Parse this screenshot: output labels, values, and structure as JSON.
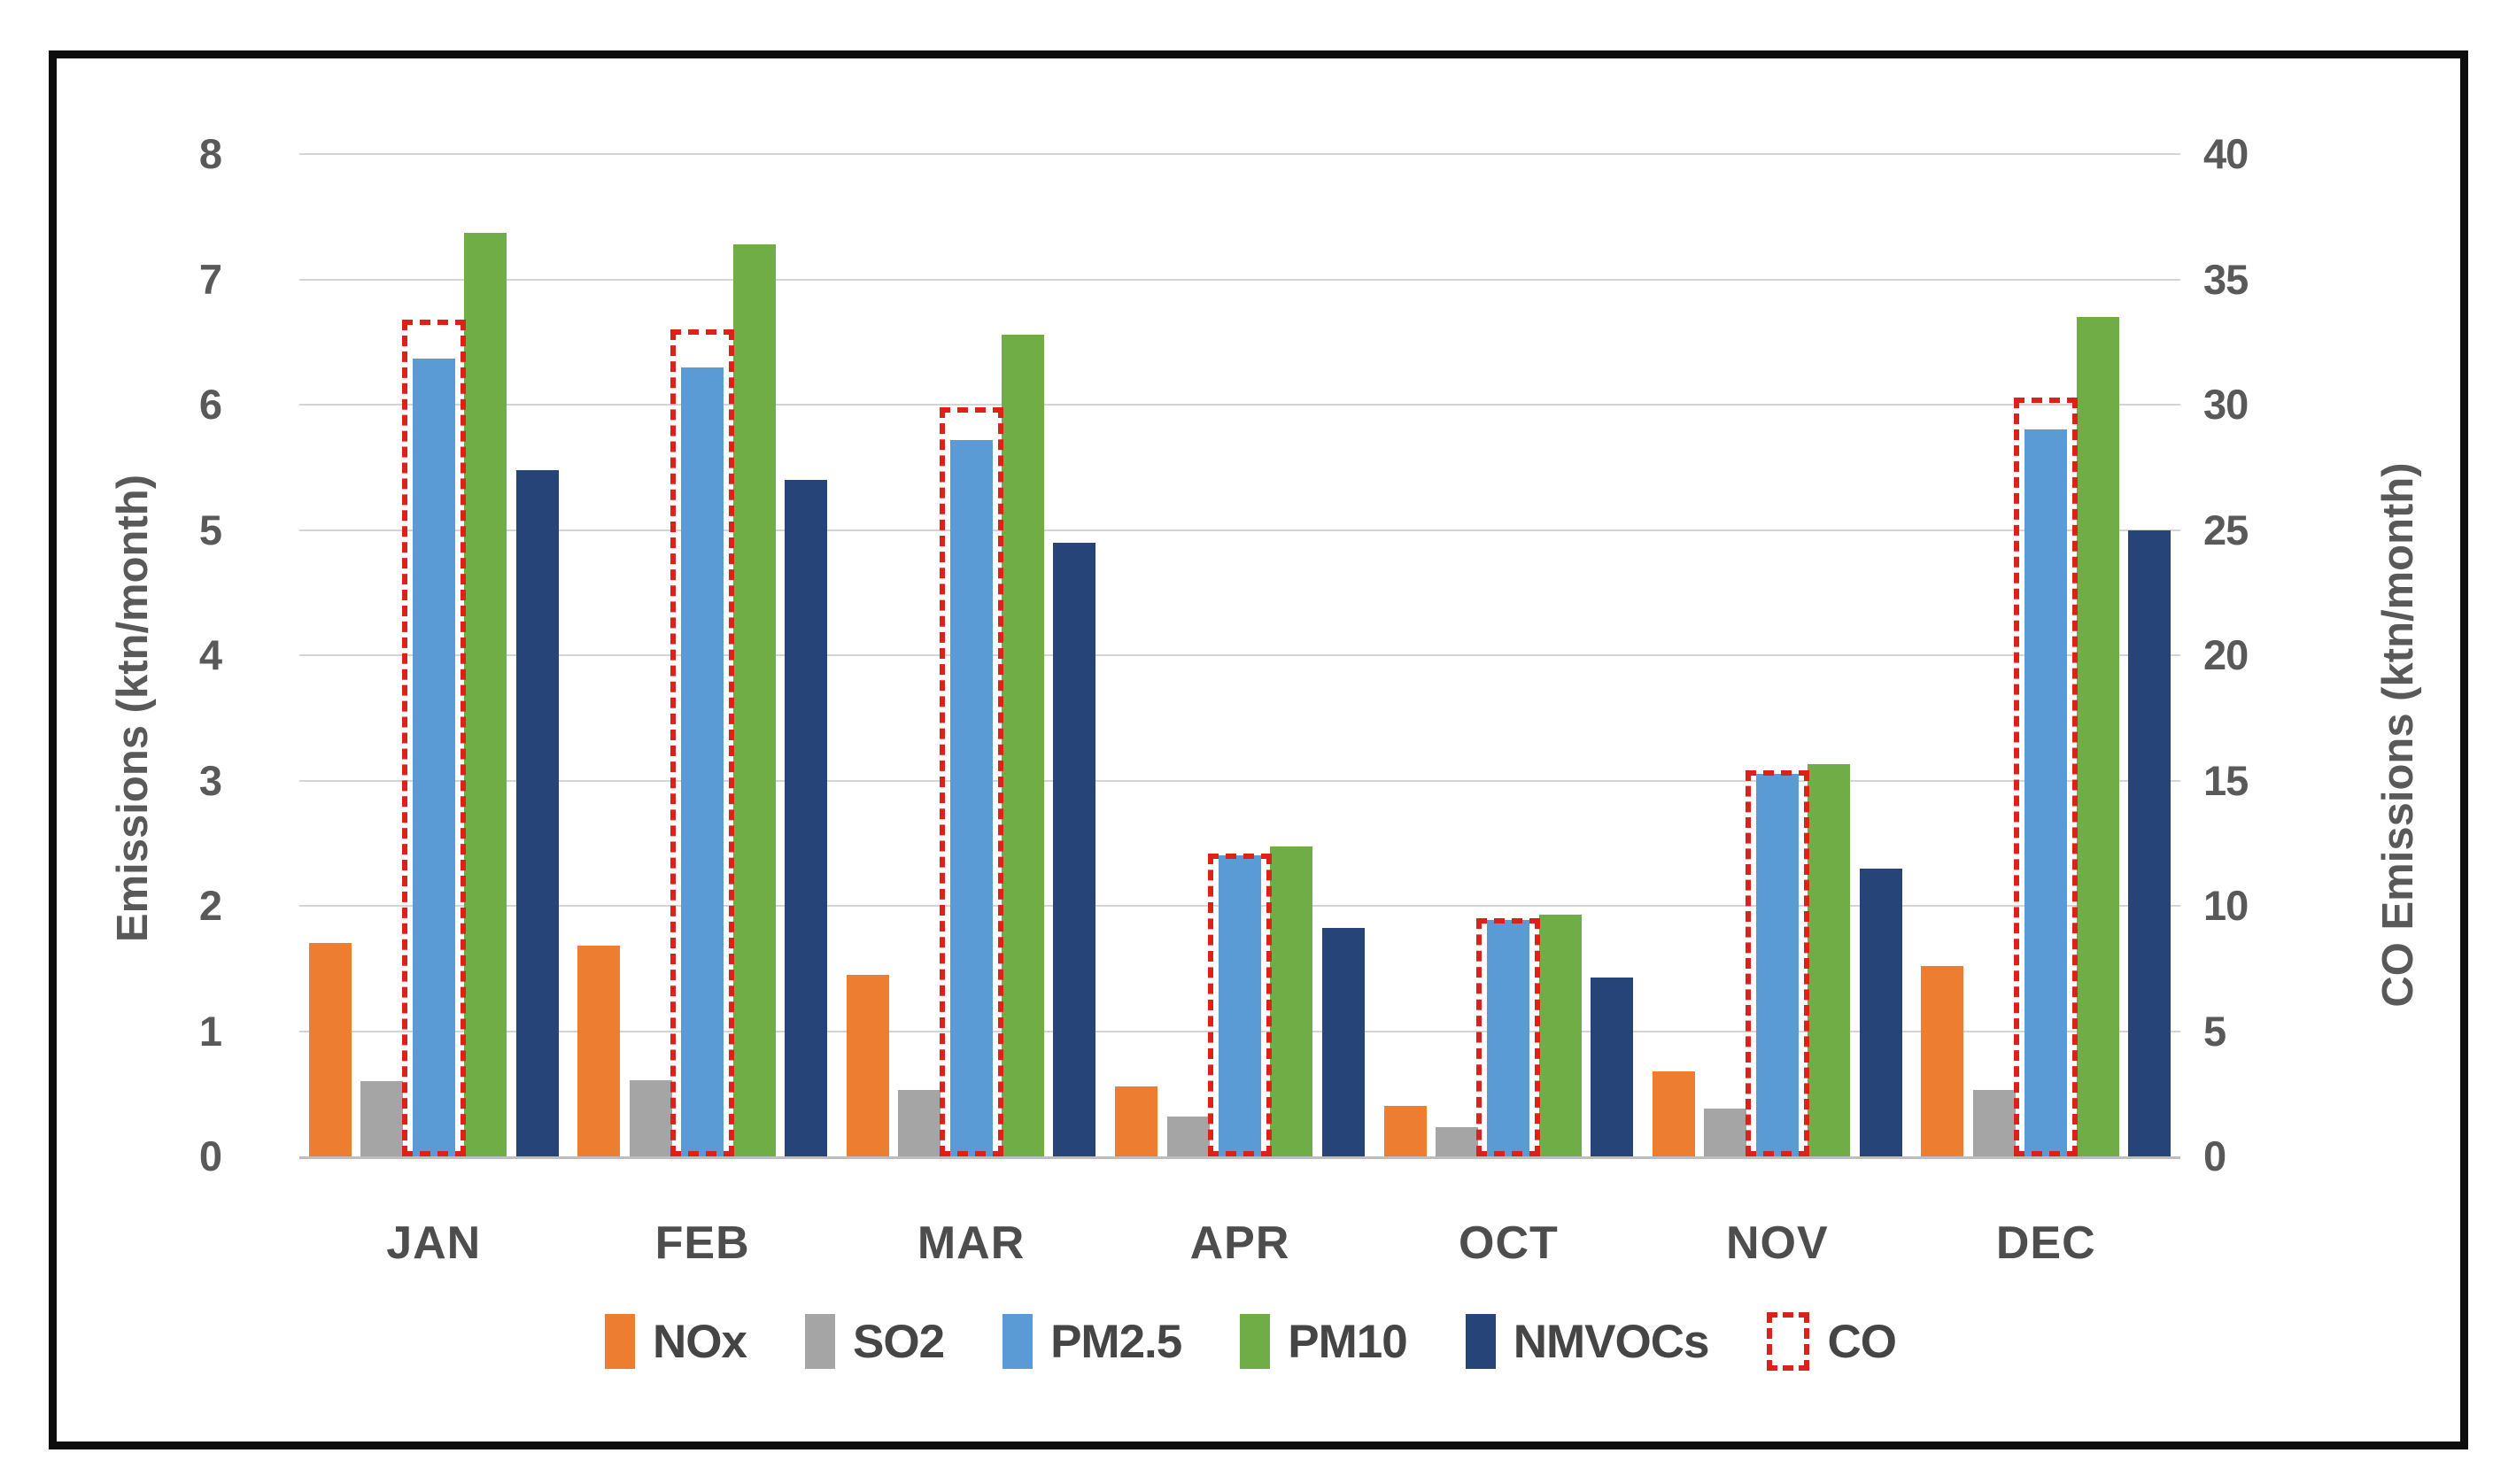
{
  "chart_data": {
    "type": "bar",
    "title": "",
    "categories": [
      "JAN",
      "FEB",
      "MAR",
      "APR",
      "OCT",
      "NOV",
      "DEC"
    ],
    "series": [
      {
        "name": "NOx",
        "color": "#ED7D31",
        "axis": "left",
        "values": [
          1.7,
          1.68,
          1.45,
          0.56,
          0.4,
          0.68,
          1.52
        ]
      },
      {
        "name": "SO2",
        "color": "#A5A5A5",
        "axis": "left",
        "values": [
          0.6,
          0.61,
          0.53,
          0.32,
          0.23,
          0.38,
          0.53
        ]
      },
      {
        "name": "PM2.5",
        "color": "#5B9BD5",
        "axis": "left",
        "values": [
          6.37,
          6.3,
          5.72,
          2.4,
          1.89,
          3.05,
          5.8
        ]
      },
      {
        "name": "PM10",
        "color": "#70AD47",
        "axis": "left",
        "values": [
          7.37,
          7.28,
          6.56,
          2.47,
          1.93,
          3.13,
          6.7
        ]
      },
      {
        "name": "NMVOCs",
        "color": "#264478",
        "axis": "left",
        "values": [
          5.48,
          5.4,
          4.9,
          1.82,
          1.43,
          2.3,
          5.0
        ]
      },
      {
        "name": "CO",
        "color": "#dd2018",
        "axis": "right",
        "style": "dashed-outline",
        "values": [
          33.4,
          33.0,
          29.9,
          12.1,
          9.5,
          15.4,
          30.3
        ]
      }
    ],
    "left_axis": {
      "label": "Emissions (ktn/month)",
      "min": 0,
      "max": 8,
      "tick_step": 1,
      "ticks": [
        0,
        1,
        2,
        3,
        4,
        5,
        6,
        7,
        8
      ]
    },
    "right_axis": {
      "label": "CO Emissions (ktn/month)",
      "min": 0,
      "max": 40,
      "tick_step": 5,
      "ticks": [
        0,
        5,
        10,
        15,
        20,
        25,
        30,
        35,
        40
      ]
    },
    "grid": true,
    "legend_position": "bottom",
    "legend": [
      "NOx",
      "SO2",
      "PM2.5",
      "PM10",
      "NMVOCs",
      "CO"
    ]
  },
  "colors": {
    "grid": "#d4d4d4",
    "axis_line": "#bdbdbd",
    "tick_text": "#595959",
    "category_text": "#4d4d4d",
    "legend_text": "#454545",
    "frame_border": "#0d0d0d",
    "co_dash": "#dd2018",
    "background": "#ffffff"
  }
}
